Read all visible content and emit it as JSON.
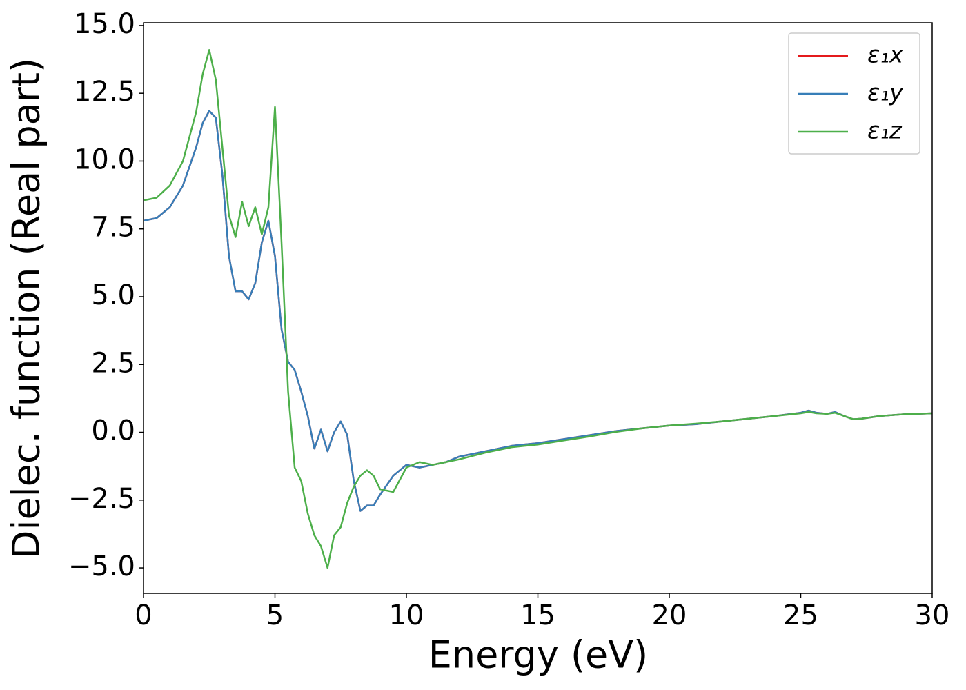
{
  "chart_data": {
    "type": "line",
    "xlabel": "Energy (eV)",
    "ylabel": "Dielec. function (Real part)",
    "x": [
      0,
      0.5,
      1,
      1.5,
      2,
      2.25,
      2.5,
      2.75,
      3,
      3.25,
      3.5,
      3.75,
      4,
      4.25,
      4.5,
      4.75,
      5,
      5.25,
      5.5,
      5.75,
      6,
      6.25,
      6.5,
      6.75,
      7,
      7.25,
      7.5,
      7.75,
      8,
      8.25,
      8.5,
      8.75,
      9,
      9.5,
      10,
      10.5,
      11,
      11.5,
      12,
      13,
      14,
      15,
      16,
      17,
      18,
      19,
      20,
      21,
      22,
      23,
      24,
      25,
      25.3,
      25.6,
      26,
      26.3,
      26.6,
      27,
      27.3,
      28,
      29,
      30
    ],
    "series": [
      {
        "name": "ε₁x",
        "color": "#e41a1c",
        "values": [
          7.8,
          7.9,
          8.3,
          9.1,
          10.5,
          11.4,
          11.85,
          11.6,
          9.5,
          6.5,
          5.2,
          5.2,
          4.9,
          5.5,
          7.0,
          7.8,
          6.5,
          3.8,
          2.6,
          2.3,
          1.5,
          0.6,
          -0.6,
          0.1,
          -0.7,
          0.0,
          0.4,
          -0.1,
          -1.8,
          -2.9,
          -2.7,
          -2.7,
          -2.3,
          -1.6,
          -1.2,
          -1.3,
          -1.2,
          -1.1,
          -0.9,
          -0.7,
          -0.5,
          -0.4,
          -0.25,
          -0.1,
          0.05,
          0.15,
          0.25,
          0.3,
          0.4,
          0.5,
          0.6,
          0.72,
          0.8,
          0.72,
          0.68,
          0.75,
          0.62,
          0.48,
          0.5,
          0.6,
          0.67,
          0.7
        ]
      },
      {
        "name": "ε₁y",
        "color": "#377eb8",
        "values": [
          7.8,
          7.9,
          8.3,
          9.1,
          10.5,
          11.4,
          11.85,
          11.6,
          9.5,
          6.5,
          5.2,
          5.2,
          4.9,
          5.5,
          7.0,
          7.8,
          6.5,
          3.8,
          2.6,
          2.3,
          1.5,
          0.6,
          -0.6,
          0.1,
          -0.7,
          0.0,
          0.4,
          -0.1,
          -1.8,
          -2.9,
          -2.7,
          -2.7,
          -2.3,
          -1.6,
          -1.2,
          -1.3,
          -1.2,
          -1.1,
          -0.9,
          -0.7,
          -0.5,
          -0.4,
          -0.25,
          -0.1,
          0.05,
          0.15,
          0.25,
          0.3,
          0.4,
          0.5,
          0.6,
          0.72,
          0.8,
          0.72,
          0.68,
          0.75,
          0.62,
          0.48,
          0.5,
          0.6,
          0.67,
          0.7
        ]
      },
      {
        "name": "ε₁z",
        "color": "#4daf4a",
        "values": [
          8.55,
          8.65,
          9.1,
          10.0,
          11.8,
          13.2,
          14.1,
          13.0,
          10.5,
          8.0,
          7.2,
          8.5,
          7.6,
          8.3,
          7.3,
          8.3,
          12.0,
          7.0,
          1.5,
          -1.3,
          -1.8,
          -3.0,
          -3.8,
          -4.2,
          -5.0,
          -3.8,
          -3.5,
          -2.6,
          -2.0,
          -1.6,
          -1.4,
          -1.6,
          -2.1,
          -2.2,
          -1.3,
          -1.1,
          -1.2,
          -1.1,
          -1.0,
          -0.75,
          -0.55,
          -0.45,
          -0.3,
          -0.15,
          0.02,
          0.15,
          0.25,
          0.32,
          0.4,
          0.5,
          0.6,
          0.7,
          0.75,
          0.7,
          0.68,
          0.72,
          0.62,
          0.48,
          0.5,
          0.6,
          0.67,
          0.7
        ]
      }
    ],
    "xlim": [
      0,
      30
    ],
    "xticks": [
      0,
      5,
      10,
      15,
      20,
      25,
      30
    ],
    "ylim": [
      -5.94,
      15.1
    ],
    "yticks": [
      {
        "value": -5,
        "label": "−5.0"
      },
      {
        "value": -2.5,
        "label": "−2.5"
      },
      {
        "value": 0,
        "label": "0.0"
      },
      2.5,
      {
        "value": 5,
        "label": "5.0"
      },
      7.5,
      {
        "value": 10,
        "label": "10.0"
      },
      12.5,
      {
        "value": 15,
        "label": "15.0"
      }
    ],
    "legend": "upper right",
    "grid": false
  }
}
